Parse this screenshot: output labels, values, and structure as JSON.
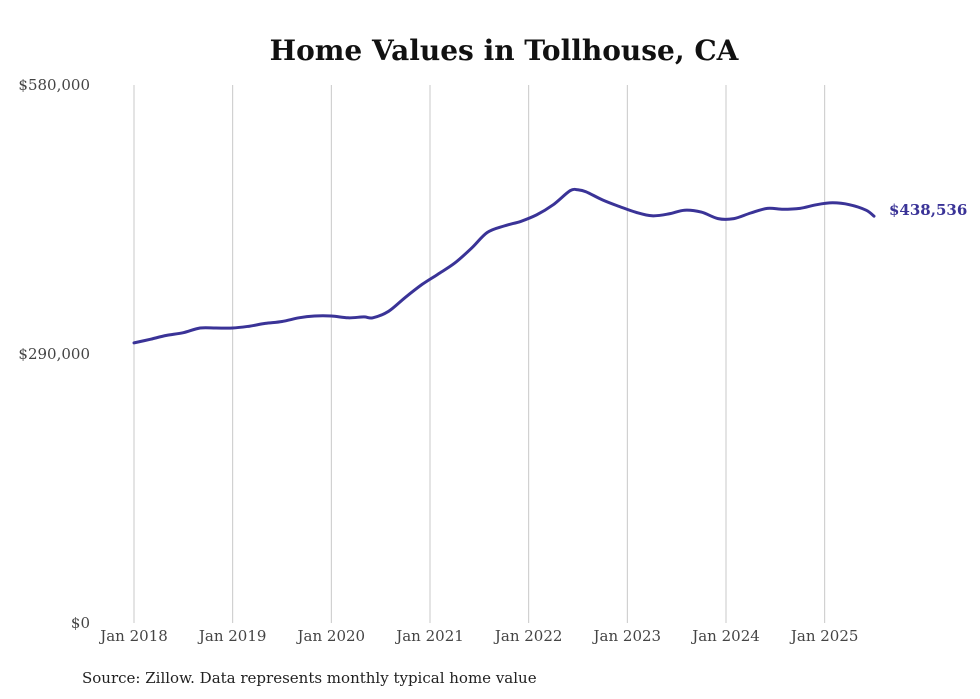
{
  "chart_data": {
    "type": "line",
    "title": "Home Values in Tollhouse, CA",
    "xlabel": "",
    "ylabel": "",
    "ylim": [
      0,
      580000
    ],
    "y_ticks": [
      {
        "value": 0,
        "label": "$0"
      },
      {
        "value": 290000,
        "label": "$290,000"
      },
      {
        "value": 580000,
        "label": "$580,000"
      }
    ],
    "x_ticks": [
      {
        "value": 2018.0,
        "label": "Jan 2018"
      },
      {
        "value": 2019.0,
        "label": "Jan 2019"
      },
      {
        "value": 2020.0,
        "label": "Jan 2020"
      },
      {
        "value": 2021.0,
        "label": "Jan 2021"
      },
      {
        "value": 2022.0,
        "label": "Jan 2022"
      },
      {
        "value": 2023.0,
        "label": "Jan 2023"
      },
      {
        "value": 2024.0,
        "label": "Jan 2024"
      },
      {
        "value": 2025.0,
        "label": "Jan 2025"
      }
    ],
    "xlim": [
      2018.0,
      2025.5
    ],
    "grid": "vertical",
    "line_color": "#3a3397",
    "series": [
      {
        "points": [
          [
            2018.0,
            302000
          ],
          [
            2018.17,
            306000
          ],
          [
            2018.33,
            310000
          ],
          [
            2018.5,
            313000
          ],
          [
            2018.67,
            318000
          ],
          [
            2018.83,
            318000
          ],
          [
            2019.0,
            318000
          ],
          [
            2019.17,
            320000
          ],
          [
            2019.33,
            323000
          ],
          [
            2019.5,
            325000
          ],
          [
            2019.67,
            329000
          ],
          [
            2019.83,
            331000
          ],
          [
            2020.0,
            331000
          ],
          [
            2020.17,
            329000
          ],
          [
            2020.33,
            330000
          ],
          [
            2020.42,
            329000
          ],
          [
            2020.58,
            336000
          ],
          [
            2020.75,
            351000
          ],
          [
            2020.92,
            365000
          ],
          [
            2021.08,
            376000
          ],
          [
            2021.25,
            388000
          ],
          [
            2021.42,
            404000
          ],
          [
            2021.58,
            421000
          ],
          [
            2021.75,
            428000
          ],
          [
            2021.92,
            433000
          ],
          [
            2022.08,
            440000
          ],
          [
            2022.25,
            451000
          ],
          [
            2022.42,
            466000
          ],
          [
            2022.5,
            467000
          ],
          [
            2022.58,
            465000
          ],
          [
            2022.75,
            456000
          ],
          [
            2022.92,
            449000
          ],
          [
            2023.08,
            443000
          ],
          [
            2023.25,
            439000
          ],
          [
            2023.42,
            441000
          ],
          [
            2023.58,
            445000
          ],
          [
            2023.75,
            443000
          ],
          [
            2023.92,
            436000
          ],
          [
            2024.08,
            436000
          ],
          [
            2024.25,
            442000
          ],
          [
            2024.42,
            447000
          ],
          [
            2024.58,
            446000
          ],
          [
            2024.75,
            447000
          ],
          [
            2024.92,
            451000
          ],
          [
            2025.08,
            453000
          ],
          [
            2025.25,
            451000
          ],
          [
            2025.42,
            445000
          ],
          [
            2025.5,
            438536
          ]
        ],
        "end_label": "$438,536"
      }
    ],
    "source": "Source: Zillow. Data represents monthly typical home value"
  }
}
